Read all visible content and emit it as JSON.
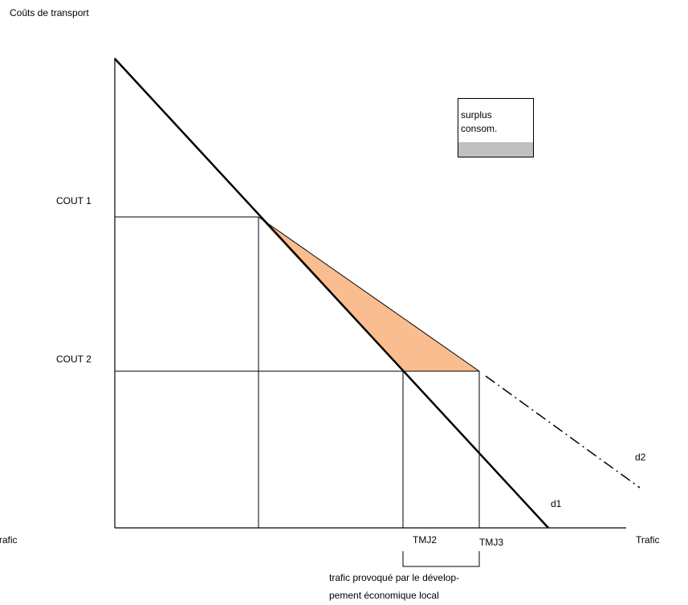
{
  "axis": {
    "y_label": "Coûts de transport",
    "x_label": "Trafic",
    "x_label_left": "Trafic"
  },
  "levels": [
    "COUT 1",
    "COUT 2"
  ],
  "quantities": [
    "TMJ2",
    "TMJ3"
  ],
  "curves": [
    "d1",
    "d2"
  ],
  "legend": {
    "lines": [
      "surplus",
      "consom."
    ]
  },
  "annotation": {
    "lines": [
      "trafic provoqué par le dévelop-",
      "pement économique local"
    ]
  }
}
